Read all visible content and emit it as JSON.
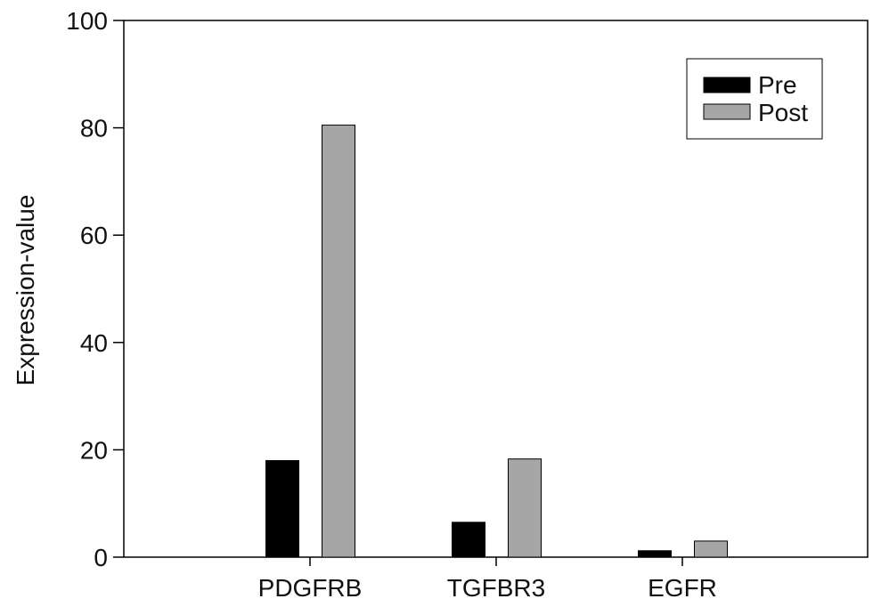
{
  "chart_data": {
    "type": "bar",
    "categories": [
      "PDGFRB",
      "TGFBR3",
      "EGFR"
    ],
    "series": [
      {
        "name": "Pre",
        "values": [
          18,
          6.5,
          1.2
        ],
        "color": "#000000"
      },
      {
        "name": "Post",
        "values": [
          80.5,
          18.3,
          3.0
        ],
        "color": "#a6a6a6"
      }
    ],
    "ylabel": "Expression-value",
    "ylim": [
      0,
      100
    ],
    "yticks": [
      "0",
      "20",
      "40",
      "60",
      "80",
      "100"
    ],
    "legend_placement": "top-right",
    "grid": false
  }
}
